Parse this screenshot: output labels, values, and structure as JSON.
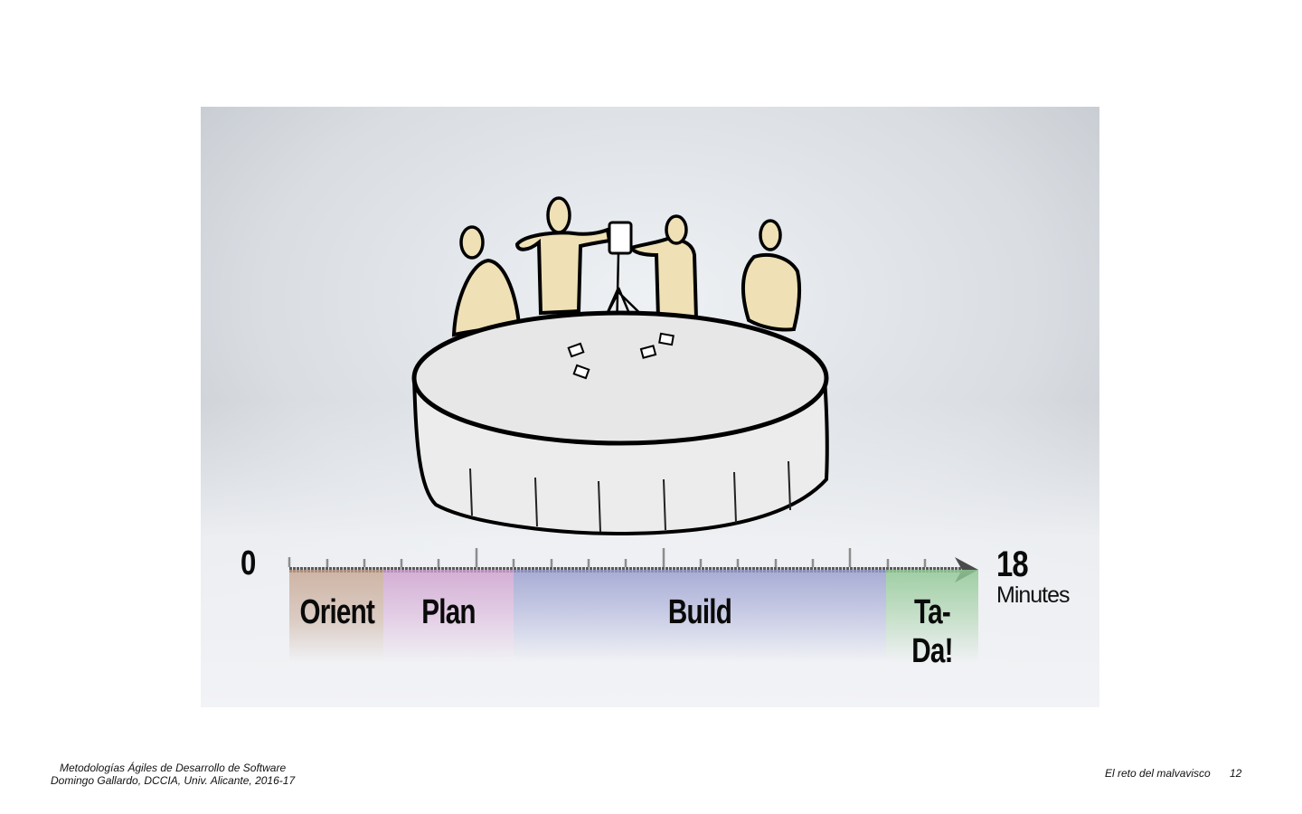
{
  "timeline": {
    "start_label": "0",
    "end_label": "18",
    "unit_label": "Minutes",
    "phases": [
      {
        "label": "Orient",
        "color": "#c4a08a"
      },
      {
        "label": "Plan",
        "color": "#cd9ecd"
      },
      {
        "label": "Build",
        "color": "#969bcd"
      },
      {
        "label": "Ta-Da!",
        "color": "#91c896"
      }
    ]
  },
  "footer": {
    "course_title": "Metodologías Ágiles de Desarrollo de Software",
    "author_line": "Domingo Gallardo, DCCIA, Univ. Alicante, 2016-17",
    "section_title": "El reto del malvavisco",
    "page_number": "12"
  },
  "colors": {
    "figure_fill": "#efe0b5",
    "table_fill": "#ececec",
    "ink": "#000000"
  }
}
